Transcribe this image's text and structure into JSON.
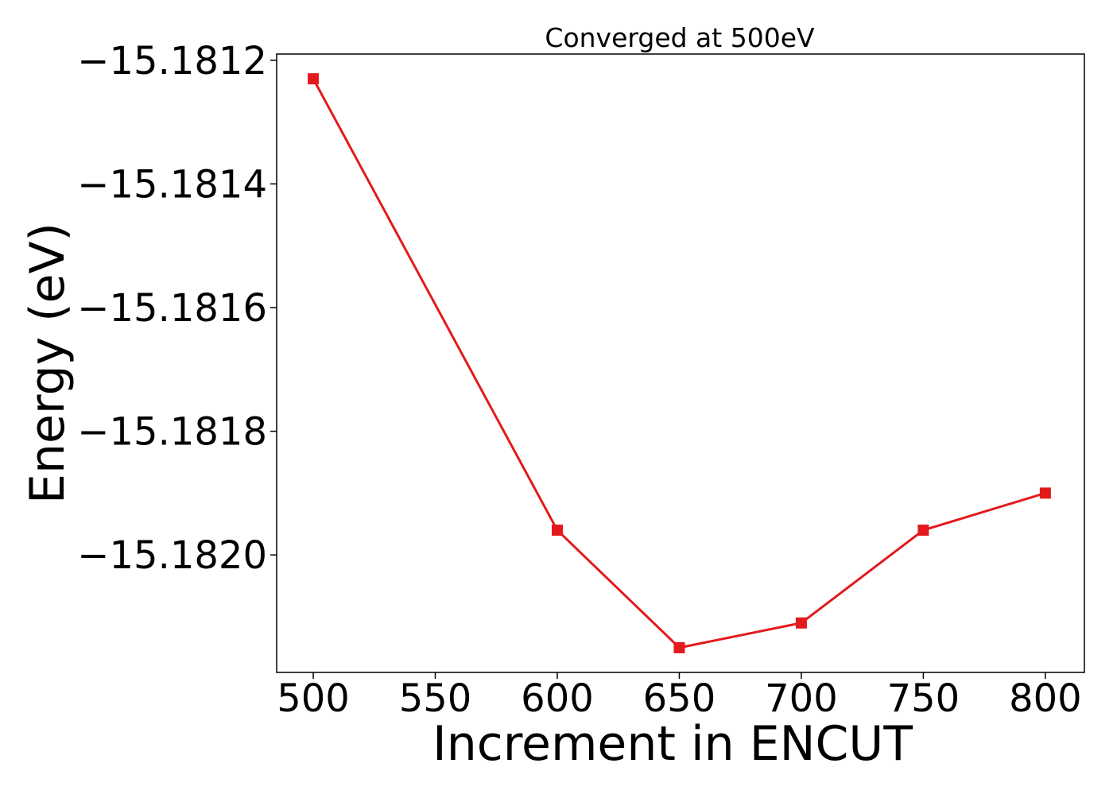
{
  "chart_data": {
    "type": "line",
    "title": "Converged at 500eV",
    "xlabel": "Increment in ENCUT",
    "ylabel": "Energy (eV)",
    "x": [
      500,
      600,
      650,
      700,
      750,
      800
    ],
    "series": [
      {
        "values": [
          -15.18123,
          -15.18196,
          -15.18215,
          -15.18211,
          -15.18196,
          -15.1819
        ],
        "color": "#e31a1c",
        "marker": "square"
      }
    ],
    "xlim": [
      485,
      816
    ],
    "ylim": [
      -15.18219,
      -15.18119
    ],
    "xticks": [
      500,
      550,
      600,
      650,
      700,
      750,
      800
    ],
    "xtick_labels": [
      "500",
      "550",
      "600",
      "650",
      "700",
      "750",
      "800"
    ],
    "yticks": [
      -15.1812,
      -15.1814,
      -15.1816,
      -15.1818,
      -15.182
    ],
    "ytick_labels": [
      "−15.1812",
      "−15.1814",
      "−15.1816",
      "−15.1818",
      "−15.1820"
    ],
    "grid": false,
    "legend": "none"
  }
}
